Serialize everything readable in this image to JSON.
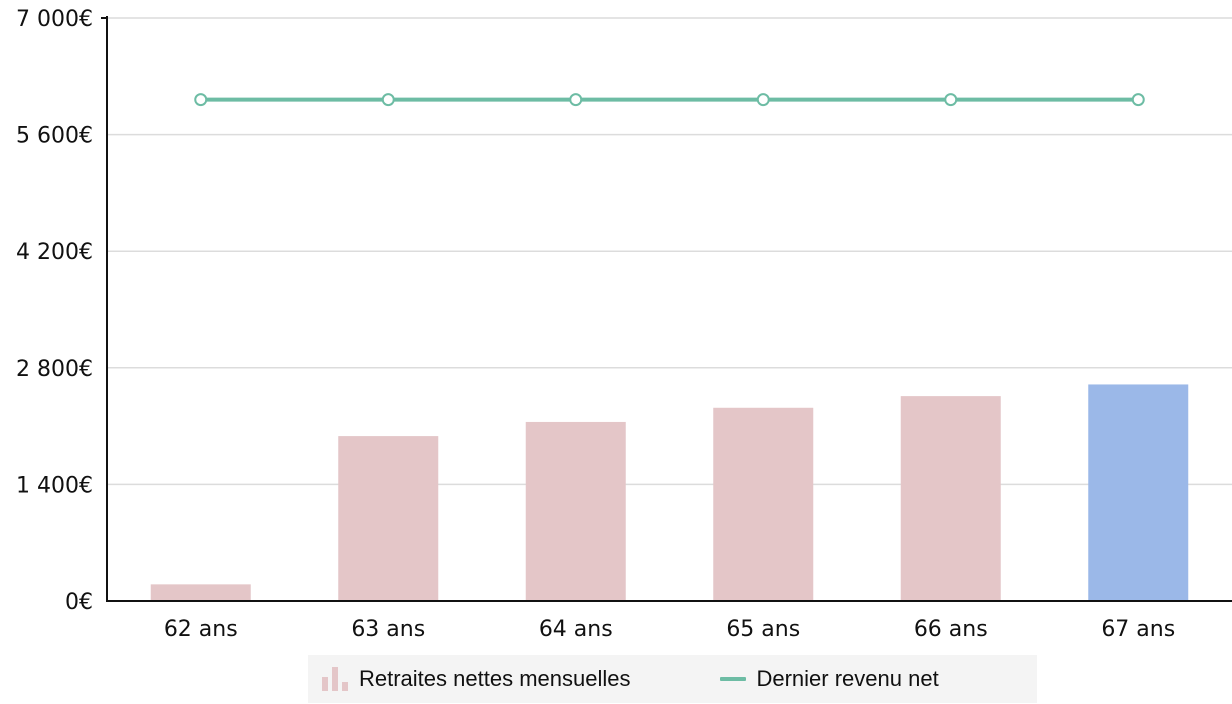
{
  "chart_data": {
    "type": "bar",
    "categories": [
      "62 ans",
      "63 ans",
      "64 ans",
      "65 ans",
      "66 ans",
      "67 ans"
    ],
    "series": [
      {
        "name": "Retraites nettes mensuelles",
        "type": "bar",
        "values": [
          200,
          1980,
          2150,
          2320,
          2460,
          2600
        ],
        "color": "#e4c6c8",
        "highlight_index": 5,
        "highlight_color": "#9bb8e8"
      },
      {
        "name": "Dernier revenu net",
        "type": "line",
        "values": [
          6020,
          6020,
          6020,
          6020,
          6020,
          6020
        ],
        "color": "#6dbca4"
      }
    ],
    "y_ticks": [
      0,
      1400,
      2800,
      4200,
      5600,
      7000
    ],
    "y_tick_labels": [
      "0€",
      "1 400€",
      "2 800€",
      "4 200€",
      "5 600€",
      "7 000€"
    ],
    "ylim": [
      0,
      7000
    ],
    "grid": true,
    "legend_position": "bottom-center",
    "title": "",
    "xlabel": "",
    "ylabel": ""
  }
}
